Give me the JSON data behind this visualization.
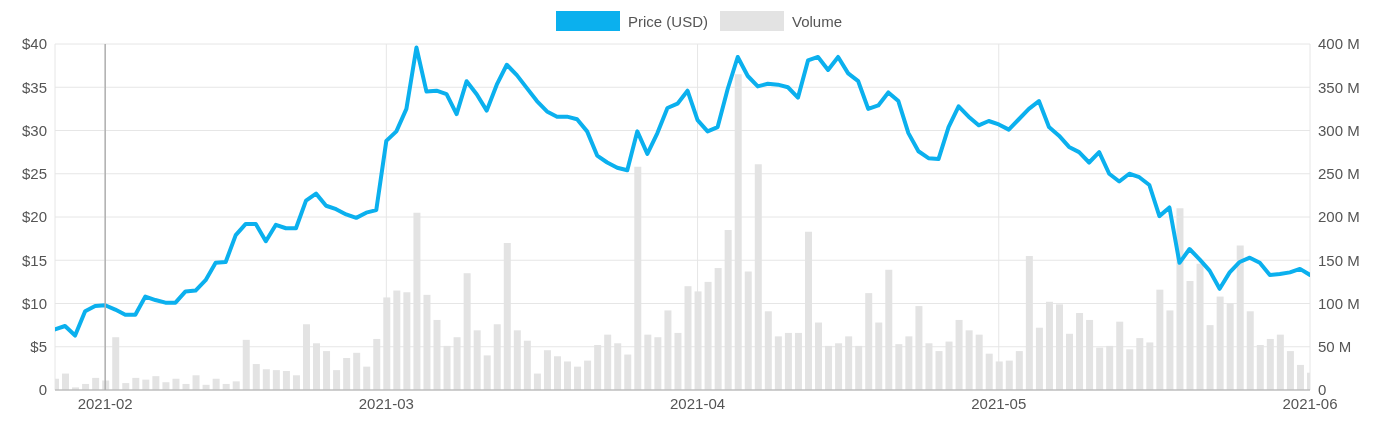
{
  "chart_data": {
    "type": "line",
    "x": [
      "2021-01-27",
      "2021-01-28",
      "2021-01-29",
      "2021-01-30",
      "2021-01-31",
      "2021-02-01",
      "2021-02-02",
      "2021-02-03",
      "2021-02-04",
      "2021-02-05",
      "2021-02-06",
      "2021-02-07",
      "2021-02-08",
      "2021-02-09",
      "2021-02-10",
      "2021-02-11",
      "2021-02-12",
      "2021-02-13",
      "2021-02-14",
      "2021-02-15",
      "2021-02-16",
      "2021-02-17",
      "2021-02-18",
      "2021-02-19",
      "2021-02-20",
      "2021-02-21",
      "2021-02-22",
      "2021-02-23",
      "2021-02-24",
      "2021-02-25",
      "2021-02-26",
      "2021-02-27",
      "2021-02-28",
      "2021-03-01",
      "2021-03-02",
      "2021-03-03",
      "2021-03-04",
      "2021-03-05",
      "2021-03-06",
      "2021-03-07",
      "2021-03-08",
      "2021-03-09",
      "2021-03-10",
      "2021-03-11",
      "2021-03-12",
      "2021-03-13",
      "2021-03-14",
      "2021-03-15",
      "2021-03-16",
      "2021-03-17",
      "2021-03-18",
      "2021-03-19",
      "2021-03-20",
      "2021-03-21",
      "2021-03-22",
      "2021-03-23",
      "2021-03-24",
      "2021-03-25",
      "2021-03-26",
      "2021-03-27",
      "2021-03-28",
      "2021-03-29",
      "2021-03-30",
      "2021-03-31",
      "2021-04-01",
      "2021-04-02",
      "2021-04-03",
      "2021-04-04",
      "2021-04-05",
      "2021-04-06",
      "2021-04-07",
      "2021-04-08",
      "2021-04-09",
      "2021-04-10",
      "2021-04-11",
      "2021-04-12",
      "2021-04-13",
      "2021-04-14",
      "2021-04-15",
      "2021-04-16",
      "2021-04-17",
      "2021-04-18",
      "2021-04-19",
      "2021-04-20",
      "2021-04-21",
      "2021-04-22",
      "2021-04-23",
      "2021-04-24",
      "2021-04-25",
      "2021-04-26",
      "2021-04-27",
      "2021-04-28",
      "2021-04-29",
      "2021-04-30",
      "2021-05-01",
      "2021-05-02",
      "2021-05-03",
      "2021-05-04",
      "2021-05-05",
      "2021-05-06",
      "2021-05-07",
      "2021-05-08",
      "2021-05-09",
      "2021-05-10",
      "2021-05-11",
      "2021-05-12",
      "2021-05-13",
      "2021-05-14",
      "2021-05-15",
      "2021-05-16",
      "2021-05-17",
      "2021-05-18",
      "2021-05-19",
      "2021-05-20",
      "2021-05-21",
      "2021-05-22",
      "2021-05-23",
      "2021-05-24",
      "2021-05-25",
      "2021-05-26",
      "2021-05-27",
      "2021-05-28",
      "2021-05-29",
      "2021-05-30",
      "2021-05-31",
      "2021-06-01"
    ],
    "series": [
      {
        "name": "Price (USD)",
        "color": "#0bb0ee",
        "values": [
          7.0,
          7.4,
          6.3,
          9.1,
          9.7,
          9.8,
          9.3,
          8.7,
          8.7,
          10.8,
          10.4,
          10.1,
          10.1,
          11.4,
          11.5,
          12.7,
          14.7,
          14.8,
          17.9,
          19.2,
          19.2,
          17.2,
          19.1,
          18.7,
          18.7,
          21.9,
          22.7,
          21.3,
          20.9,
          20.3,
          19.9,
          20.5,
          20.8,
          28.8,
          29.9,
          32.5,
          39.6,
          34.5,
          34.6,
          34.2,
          31.9,
          35.7,
          34.2,
          32.3,
          35.3,
          37.6,
          36.4,
          34.9,
          33.4,
          32.2,
          31.6,
          31.6,
          31.3,
          29.9,
          27.1,
          26.3,
          25.7,
          25.4,
          29.9,
          27.3,
          29.7,
          32.6,
          33.1,
          34.6,
          31.2,
          29.9,
          30.4,
          34.8,
          38.5,
          36.3,
          35.1,
          35.4,
          35.3,
          35.0,
          33.8,
          38.1,
          38.5,
          37.0,
          38.5,
          36.6,
          35.7,
          32.5,
          32.9,
          34.4,
          33.4,
          29.7,
          27.6,
          26.8,
          26.7,
          30.4,
          32.8,
          31.6,
          30.6,
          31.1,
          30.7,
          30.1,
          31.3,
          32.5,
          33.4,
          30.4,
          29.4,
          28.1,
          27.5,
          26.3,
          27.5,
          25.0,
          24.1,
          25.0,
          24.6,
          23.7,
          20.1,
          21.1,
          14.7,
          16.3,
          15.1,
          13.8,
          11.7,
          13.6,
          14.8,
          15.3,
          14.7,
          13.3,
          13.4,
          13.6,
          14.0,
          13.3
        ]
      },
      {
        "name": "Volume",
        "type": "bar",
        "axis": "y2",
        "color": "#e3e3e3",
        "values": [
          13,
          19,
          3,
          7,
          14,
          11,
          61,
          8,
          14,
          12,
          16,
          9,
          13,
          7,
          17,
          6,
          13,
          7,
          10,
          58,
          30,
          24,
          23,
          22,
          17,
          76,
          54,
          45,
          23,
          37,
          43,
          27,
          59,
          107,
          115,
          113,
          205,
          110,
          81,
          51,
          61,
          135,
          69,
          40,
          76,
          170,
          69,
          57,
          19,
          46,
          39,
          33,
          27,
          34,
          52,
          64,
          54,
          41,
          258,
          64,
          61,
          92,
          66,
          120,
          114,
          125,
          141,
          185,
          365,
          137,
          261,
          91,
          62,
          66,
          66,
          183,
          78,
          51,
          54,
          62,
          51,
          112,
          78,
          139,
          53,
          62,
          97,
          54,
          45,
          56,
          81,
          69,
          64,
          42,
          33,
          34,
          45,
          155,
          72,
          102,
          99,
          65,
          89,
          81,
          49,
          51,
          79,
          47,
          60,
          55,
          116,
          92,
          210,
          126,
          146,
          75,
          108,
          100,
          167,
          91,
          52,
          59,
          64,
          45,
          29,
          20
        ]
      }
    ],
    "xlim": [
      "2021-01-27",
      "2021-06-01"
    ],
    "xticks": [
      {
        "value": "2021-02-01",
        "label": "2021-02"
      },
      {
        "value": "2021-03-01",
        "label": "2021-03"
      },
      {
        "value": "2021-04-01",
        "label": "2021-04"
      },
      {
        "value": "2021-05-01",
        "label": "2021-05"
      },
      {
        "value": "2021-06-01",
        "label": "2021-06"
      }
    ],
    "ylim": [
      0,
      40
    ],
    "yticks": [
      {
        "value": 0,
        "label": "0"
      },
      {
        "value": 5,
        "label": "$5"
      },
      {
        "value": 10,
        "label": "$10"
      },
      {
        "value": 15,
        "label": "$15"
      },
      {
        "value": 20,
        "label": "$20"
      },
      {
        "value": 25,
        "label": "$25"
      },
      {
        "value": 30,
        "label": "$30"
      },
      {
        "value": 35,
        "label": "$35"
      },
      {
        "value": 40,
        "label": "$40"
      }
    ],
    "y2lim": [
      0,
      400
    ],
    "y2ticks": [
      {
        "value": 0,
        "label": "0"
      },
      {
        "value": 50,
        "label": "50 M"
      },
      {
        "value": 100,
        "label": "100 M"
      },
      {
        "value": 150,
        "label": "150 M"
      },
      {
        "value": 200,
        "label": "200 M"
      },
      {
        "value": 250,
        "label": "250 M"
      },
      {
        "value": 300,
        "label": "300 M"
      },
      {
        "value": 350,
        "label": "350 M"
      },
      {
        "value": 400,
        "label": "400 M"
      }
    ],
    "ref_lines": [
      {
        "axis": "x",
        "value": "2021-02-01",
        "color": "#b0b0b0"
      }
    ],
    "grid": true,
    "legend": "top",
    "marker": "none",
    "line_style": "solid"
  }
}
